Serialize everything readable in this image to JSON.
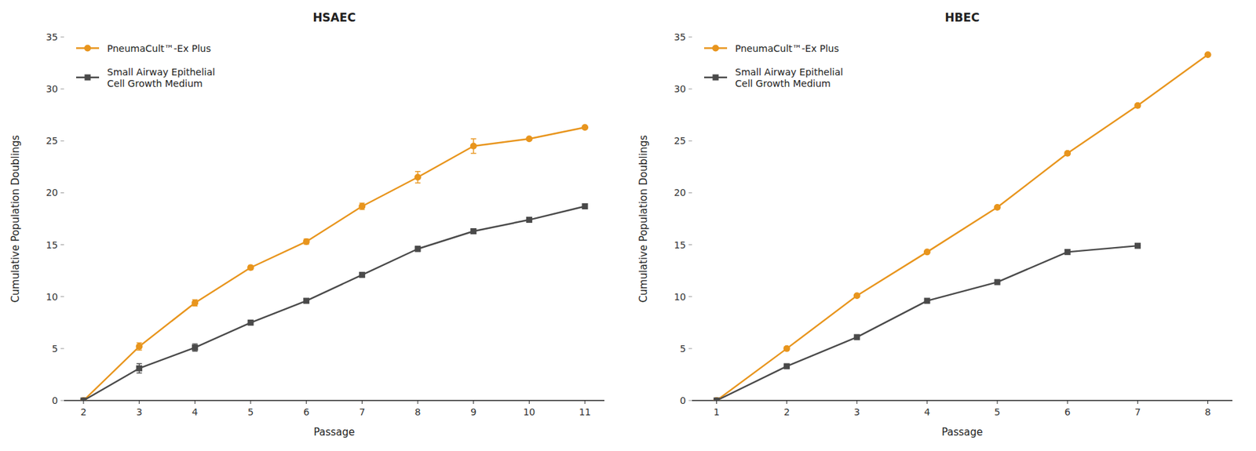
{
  "chart_data": [
    {
      "type": "line",
      "title": "HSAEC",
      "xlabel": "Passage",
      "ylabel": "Cumulative Population Doublings",
      "xlim": [
        1.65,
        11.35
      ],
      "xticks": [
        2,
        3,
        4,
        5,
        6,
        7,
        8,
        9,
        10,
        11
      ],
      "ylim": [
        0,
        35
      ],
      "yticks": [
        0,
        5,
        10,
        15,
        20,
        25,
        30,
        35
      ],
      "grid": false,
      "legend": "upper left",
      "series": [
        {
          "name": "PneumaCult™-Ex Plus",
          "color": "#E8951D",
          "marker": "circle",
          "x": [
            2,
            3,
            4,
            5,
            6,
            7,
            8,
            9,
            10,
            11
          ],
          "values": [
            0,
            5.2,
            9.4,
            12.8,
            15.3,
            18.7,
            21.5,
            24.5,
            25.2,
            26.3
          ],
          "yerr": [
            0,
            0.35,
            0.3,
            0.2,
            0.25,
            0.3,
            0.55,
            0.7,
            0.0,
            0.0
          ]
        },
        {
          "name": "Small Airway Epithelial\nCell Growth Medium",
          "color": "#4A4A4A",
          "marker": "square",
          "x": [
            2,
            3,
            4,
            5,
            6,
            7,
            8,
            9,
            10,
            11
          ],
          "values": [
            0,
            3.1,
            5.1,
            7.5,
            9.6,
            12.1,
            14.6,
            16.3,
            17.4,
            18.7
          ],
          "yerr": [
            0,
            0.45,
            0.35,
            0.2,
            0.2,
            0.2,
            0.25,
            0.2,
            0.15,
            0.25
          ]
        }
      ]
    },
    {
      "type": "line",
      "title": "HBEC",
      "xlabel": "Passage",
      "ylabel": "Cumulative Population Doublings",
      "xlim": [
        0.65,
        8.35
      ],
      "xticks": [
        1,
        2,
        3,
        4,
        5,
        6,
        7,
        8
      ],
      "ylim": [
        0,
        35
      ],
      "yticks": [
        0,
        5,
        10,
        15,
        20,
        25,
        30,
        35
      ],
      "grid": false,
      "legend": "upper left",
      "series": [
        {
          "name": "PneumaCult™-Ex Plus",
          "color": "#E8951D",
          "marker": "circle",
          "x": [
            1,
            2,
            3,
            4,
            5,
            6,
            7,
            8
          ],
          "values": [
            0,
            5.0,
            10.1,
            14.3,
            18.6,
            23.8,
            28.4,
            33.3
          ],
          "yerr": [
            0,
            0,
            0,
            0,
            0,
            0,
            0,
            0
          ]
        },
        {
          "name": "Small Airway Epithelial\nCell Growth Medium",
          "color": "#4A4A4A",
          "marker": "square",
          "x": [
            1,
            2,
            3,
            4,
            5,
            6,
            7
          ],
          "values": [
            0,
            3.3,
            6.1,
            9.6,
            11.4,
            14.3,
            14.9
          ],
          "yerr": [
            0,
            0,
            0,
            0,
            0,
            0,
            0
          ]
        }
      ]
    }
  ]
}
